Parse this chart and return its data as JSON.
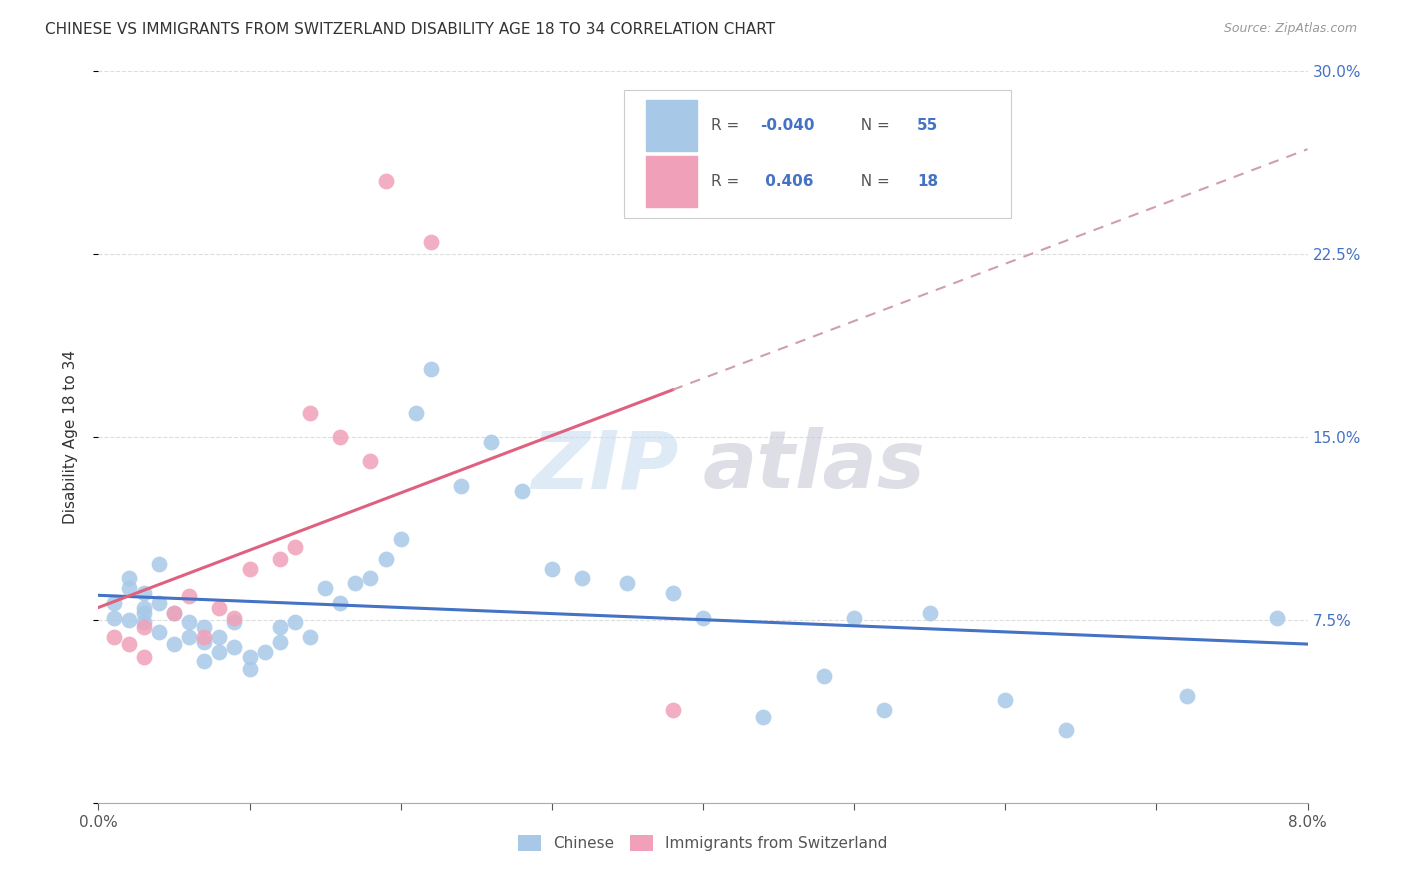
{
  "title": "CHINESE VS IMMIGRANTS FROM SWITZERLAND DISABILITY AGE 18 TO 34 CORRELATION CHART",
  "source": "Source: ZipAtlas.com",
  "ylabel_label": "Disability Age 18 to 34",
  "xlim": [
    0.0,
    0.08
  ],
  "ylim": [
    0.0,
    0.3
  ],
  "color_chinese": "#a8c8e8",
  "color_swiss": "#f0a0b8",
  "color_line_chinese": "#4472c4",
  "color_line_swiss": "#e06080",
  "color_line_swiss_dashed": "#d0a0a8",
  "watermark_zip_color": "#c8ddf0",
  "watermark_atlas_color": "#c8c8d8",
  "chinese_x": [
    0.001,
    0.001,
    0.002,
    0.002,
    0.002,
    0.003,
    0.003,
    0.003,
    0.003,
    0.004,
    0.004,
    0.004,
    0.005,
    0.005,
    0.006,
    0.006,
    0.007,
    0.007,
    0.007,
    0.008,
    0.008,
    0.009,
    0.009,
    0.01,
    0.01,
    0.011,
    0.012,
    0.012,
    0.013,
    0.014,
    0.015,
    0.016,
    0.017,
    0.018,
    0.019,
    0.02,
    0.021,
    0.022,
    0.024,
    0.026,
    0.028,
    0.03,
    0.032,
    0.035,
    0.038,
    0.04,
    0.044,
    0.048,
    0.05,
    0.052,
    0.055,
    0.06,
    0.064,
    0.072,
    0.078
  ],
  "chinese_y": [
    0.076,
    0.082,
    0.088,
    0.092,
    0.075,
    0.086,
    0.08,
    0.078,
    0.074,
    0.098,
    0.082,
    0.07,
    0.078,
    0.065,
    0.074,
    0.068,
    0.072,
    0.066,
    0.058,
    0.068,
    0.062,
    0.064,
    0.074,
    0.06,
    0.055,
    0.062,
    0.072,
    0.066,
    0.074,
    0.068,
    0.088,
    0.082,
    0.09,
    0.092,
    0.1,
    0.108,
    0.16,
    0.178,
    0.13,
    0.148,
    0.128,
    0.096,
    0.092,
    0.09,
    0.086,
    0.076,
    0.035,
    0.052,
    0.076,
    0.038,
    0.078,
    0.042,
    0.03,
    0.044,
    0.076
  ],
  "swiss_x": [
    0.001,
    0.002,
    0.003,
    0.003,
    0.005,
    0.006,
    0.007,
    0.008,
    0.009,
    0.01,
    0.012,
    0.013,
    0.014,
    0.016,
    0.018,
    0.019,
    0.022,
    0.038
  ],
  "swiss_y": [
    0.068,
    0.065,
    0.072,
    0.06,
    0.078,
    0.085,
    0.068,
    0.08,
    0.076,
    0.096,
    0.1,
    0.105,
    0.16,
    0.15,
    0.14,
    0.255,
    0.23,
    0.038
  ]
}
